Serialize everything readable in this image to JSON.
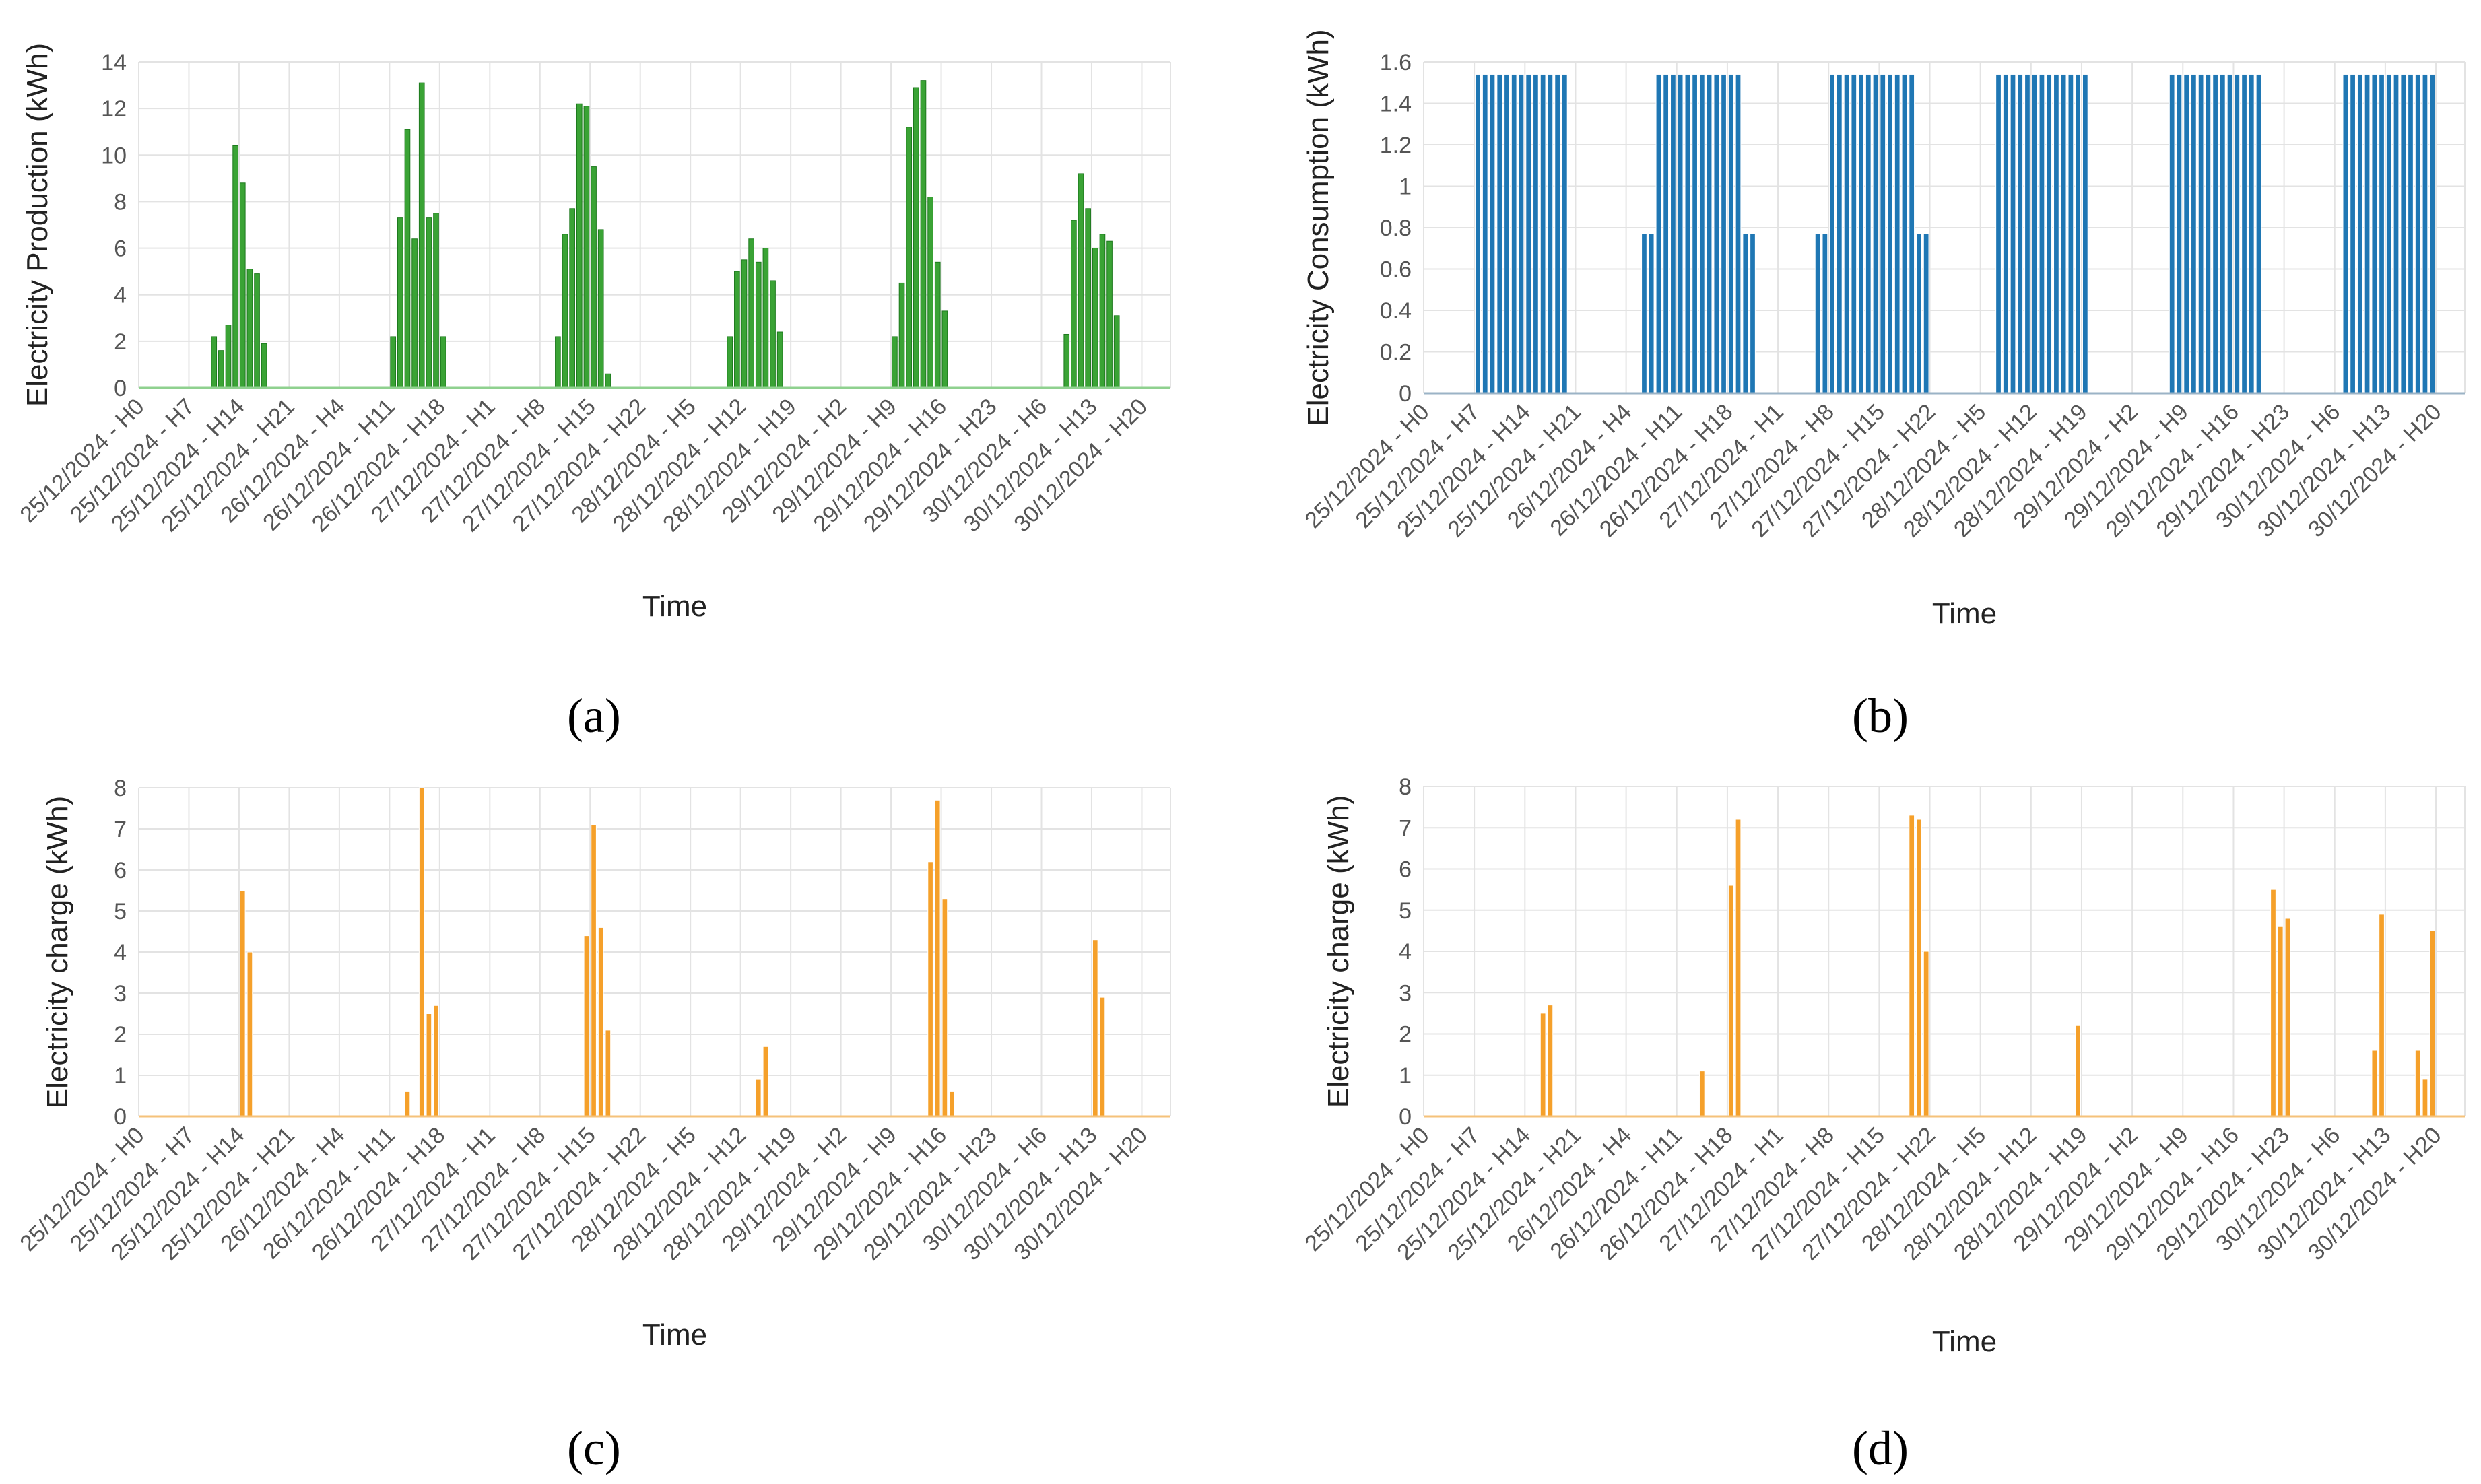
{
  "chart_data": [
    {
      "panel": "a",
      "type": "bar",
      "caption": "(a)",
      "color": "#3aa335",
      "edge_color": "#1e7a1e",
      "baseline_color": "#8fd18f",
      "xlabel": "Time",
      "ylabel": "Electricity Production (kWh)",
      "ylim": [
        0,
        14
      ],
      "yticks": [
        "0",
        "2",
        "4",
        "6",
        "8",
        "10",
        "12",
        "14"
      ],
      "xticks": [
        "25/12/2024 - H0",
        "25/12/2024 - H7",
        "25/12/2024 - H14",
        "25/12/2024 - H21",
        "26/12/2024 - H4",
        "26/12/2024 - H11",
        "26/12/2024 - H18",
        "27/12/2024 - H1",
        "27/12/2024 - H8",
        "27/12/2024 - H15",
        "27/12/2024 - H22",
        "28/12/2024 - H5",
        "28/12/2024 - H12",
        "28/12/2024 - H19",
        "29/12/2024 - H2",
        "29/12/2024 - H9",
        "29/12/2024 - H16",
        "29/12/2024 - H23",
        "30/12/2024 - H6",
        "30/12/2024 - H13",
        "30/12/2024 - H20"
      ],
      "grid": true,
      "bars": [
        {
          "h": 10,
          "v": 2.2
        },
        {
          "h": 11,
          "v": 1.6
        },
        {
          "h": 12,
          "v": 2.7
        },
        {
          "h": 13,
          "v": 10.4
        },
        {
          "h": 14,
          "v": 8.8
        },
        {
          "h": 15,
          "v": 5.1
        },
        {
          "h": 16,
          "v": 4.9
        },
        {
          "h": 17,
          "v": 1.9
        },
        {
          "h": 35,
          "v": 2.2
        },
        {
          "h": 36,
          "v": 7.3
        },
        {
          "h": 37,
          "v": 11.1
        },
        {
          "h": 38,
          "v": 6.4
        },
        {
          "h": 39,
          "v": 13.1
        },
        {
          "h": 40,
          "v": 7.3
        },
        {
          "h": 41,
          "v": 7.5
        },
        {
          "h": 42,
          "v": 2.2
        },
        {
          "h": 58,
          "v": 2.2
        },
        {
          "h": 59,
          "v": 6.6
        },
        {
          "h": 60,
          "v": 7.7
        },
        {
          "h": 61,
          "v": 12.2
        },
        {
          "h": 62,
          "v": 12.1
        },
        {
          "h": 63,
          "v": 9.5
        },
        {
          "h": 64,
          "v": 6.8
        },
        {
          "h": 65,
          "v": 0.6
        },
        {
          "h": 82,
          "v": 2.2
        },
        {
          "h": 83,
          "v": 5.0
        },
        {
          "h": 84,
          "v": 5.5
        },
        {
          "h": 85,
          "v": 6.4
        },
        {
          "h": 86,
          "v": 5.4
        },
        {
          "h": 87,
          "v": 6.0
        },
        {
          "h": 88,
          "v": 4.6
        },
        {
          "h": 89,
          "v": 2.4
        },
        {
          "h": 105,
          "v": 2.2
        },
        {
          "h": 106,
          "v": 4.5
        },
        {
          "h": 107,
          "v": 11.2
        },
        {
          "h": 108,
          "v": 12.9
        },
        {
          "h": 109,
          "v": 13.2
        },
        {
          "h": 110,
          "v": 8.2
        },
        {
          "h": 111,
          "v": 5.4
        },
        {
          "h": 112,
          "v": 3.3
        },
        {
          "h": 129,
          "v": 2.3
        },
        {
          "h": 130,
          "v": 7.2
        },
        {
          "h": 131,
          "v": 9.2
        },
        {
          "h": 132,
          "v": 7.7
        },
        {
          "h": 133,
          "v": 6.0
        },
        {
          "h": 134,
          "v": 6.6
        },
        {
          "h": 135,
          "v": 6.3
        },
        {
          "h": 136,
          "v": 3.1
        }
      ]
    },
    {
      "panel": "b",
      "type": "bar",
      "caption": "(b)",
      "color": "#1f77b4",
      "edge_color": "#ffffff",
      "baseline_color": "#9bb3c6",
      "xlabel": "Time",
      "ylabel": "Electricity Consumption (kWh)",
      "ylim": [
        0,
        1.6
      ],
      "yticks": [
        "0",
        "0.2",
        "0.4",
        "0.6",
        "0.8",
        "1",
        "1.2",
        "1.4",
        "1.6"
      ],
      "xticks": [
        "25/12/2024 - H0",
        "25/12/2024 - H7",
        "25/12/2024 - H14",
        "25/12/2024 - H21",
        "26/12/2024 - H4",
        "26/12/2024 - H11",
        "26/12/2024 - H18",
        "27/12/2024 - H1",
        "27/12/2024 - H8",
        "27/12/2024 - H15",
        "27/12/2024 - H22",
        "28/12/2024 - H5",
        "28/12/2024 - H12",
        "28/12/2024 - H19",
        "29/12/2024 - H2",
        "29/12/2024 - H9",
        "29/12/2024 - H16",
        "29/12/2024 - H23",
        "30/12/2024 - H6",
        "30/12/2024 - H13",
        "30/12/2024 - H20"
      ],
      "grid": true,
      "bars": [
        {
          "h": 7,
          "v": 1.54
        },
        {
          "h": 8,
          "v": 1.54
        },
        {
          "h": 9,
          "v": 1.54
        },
        {
          "h": 10,
          "v": 1.54
        },
        {
          "h": 11,
          "v": 1.54
        },
        {
          "h": 12,
          "v": 1.54
        },
        {
          "h": 13,
          "v": 1.54
        },
        {
          "h": 14,
          "v": 1.54
        },
        {
          "h": 15,
          "v": 1.54
        },
        {
          "h": 16,
          "v": 1.54
        },
        {
          "h": 17,
          "v": 1.54
        },
        {
          "h": 18,
          "v": 1.54
        },
        {
          "h": 19,
          "v": 1.54
        },
        {
          "h": 30,
          "v": 0.77
        },
        {
          "h": 31,
          "v": 0.77
        },
        {
          "h": 32,
          "v": 1.54
        },
        {
          "h": 33,
          "v": 1.54
        },
        {
          "h": 34,
          "v": 1.54
        },
        {
          "h": 35,
          "v": 1.54
        },
        {
          "h": 36,
          "v": 1.54
        },
        {
          "h": 37,
          "v": 1.54
        },
        {
          "h": 38,
          "v": 1.54
        },
        {
          "h": 39,
          "v": 1.54
        },
        {
          "h": 40,
          "v": 1.54
        },
        {
          "h": 41,
          "v": 1.54
        },
        {
          "h": 42,
          "v": 1.54
        },
        {
          "h": 43,
          "v": 1.54
        },
        {
          "h": 44,
          "v": 0.77
        },
        {
          "h": 45,
          "v": 0.77
        },
        {
          "h": 54,
          "v": 0.77
        },
        {
          "h": 55,
          "v": 0.77
        },
        {
          "h": 56,
          "v": 1.54
        },
        {
          "h": 57,
          "v": 1.54
        },
        {
          "h": 58,
          "v": 1.54
        },
        {
          "h": 59,
          "v": 1.54
        },
        {
          "h": 60,
          "v": 1.54
        },
        {
          "h": 61,
          "v": 1.54
        },
        {
          "h": 62,
          "v": 1.54
        },
        {
          "h": 63,
          "v": 1.54
        },
        {
          "h": 64,
          "v": 1.54
        },
        {
          "h": 65,
          "v": 1.54
        },
        {
          "h": 66,
          "v": 1.54
        },
        {
          "h": 67,
          "v": 1.54
        },
        {
          "h": 68,
          "v": 0.77
        },
        {
          "h": 69,
          "v": 0.77
        },
        {
          "h": 79,
          "v": 1.54
        },
        {
          "h": 80,
          "v": 1.54
        },
        {
          "h": 81,
          "v": 1.54
        },
        {
          "h": 82,
          "v": 1.54
        },
        {
          "h": 83,
          "v": 1.54
        },
        {
          "h": 84,
          "v": 1.54
        },
        {
          "h": 85,
          "v": 1.54
        },
        {
          "h": 86,
          "v": 1.54
        },
        {
          "h": 87,
          "v": 1.54
        },
        {
          "h": 88,
          "v": 1.54
        },
        {
          "h": 89,
          "v": 1.54
        },
        {
          "h": 90,
          "v": 1.54
        },
        {
          "h": 91,
          "v": 1.54
        },
        {
          "h": 103,
          "v": 1.54
        },
        {
          "h": 104,
          "v": 1.54
        },
        {
          "h": 105,
          "v": 1.54
        },
        {
          "h": 106,
          "v": 1.54
        },
        {
          "h": 107,
          "v": 1.54
        },
        {
          "h": 108,
          "v": 1.54
        },
        {
          "h": 109,
          "v": 1.54
        },
        {
          "h": 110,
          "v": 1.54
        },
        {
          "h": 111,
          "v": 1.54
        },
        {
          "h": 112,
          "v": 1.54
        },
        {
          "h": 113,
          "v": 1.54
        },
        {
          "h": 114,
          "v": 1.54
        },
        {
          "h": 115,
          "v": 1.54
        },
        {
          "h": 127,
          "v": 1.54
        },
        {
          "h": 128,
          "v": 1.54
        },
        {
          "h": 129,
          "v": 1.54
        },
        {
          "h": 130,
          "v": 1.54
        },
        {
          "h": 131,
          "v": 1.54
        },
        {
          "h": 132,
          "v": 1.54
        },
        {
          "h": 133,
          "v": 1.54
        },
        {
          "h": 134,
          "v": 1.54
        },
        {
          "h": 135,
          "v": 1.54
        },
        {
          "h": 136,
          "v": 1.54
        },
        {
          "h": 137,
          "v": 1.54
        },
        {
          "h": 138,
          "v": 1.54
        },
        {
          "h": 139,
          "v": 1.54
        }
      ]
    },
    {
      "panel": "c",
      "type": "bar",
      "caption": "(c)",
      "color": "#f5a02a",
      "edge_color": "#ffffff",
      "baseline_color": "#f5c27a",
      "xlabel": "Time",
      "ylabel": "Electricity charge (kWh)",
      "ylim": [
        0,
        8
      ],
      "yticks": [
        "0",
        "1",
        "2",
        "3",
        "4",
        "5",
        "6",
        "7",
        "8"
      ],
      "xticks": [
        "25/12/2024 - H0",
        "25/12/2024 - H7",
        "25/12/2024 - H14",
        "25/12/2024 - H21",
        "26/12/2024 - H4",
        "26/12/2024 - H11",
        "26/12/2024 - H18",
        "27/12/2024 - H1",
        "27/12/2024 - H8",
        "27/12/2024 - H15",
        "27/12/2024 - H22",
        "28/12/2024 - H5",
        "28/12/2024 - H12",
        "28/12/2024 - H19",
        "29/12/2024 - H2",
        "29/12/2024 - H9",
        "29/12/2024 - H16",
        "29/12/2024 - H23",
        "30/12/2024 - H6",
        "30/12/2024 - H13",
        "30/12/2024 - H20"
      ],
      "grid": true,
      "bars": [
        {
          "h": 14,
          "v": 5.5
        },
        {
          "h": 15,
          "v": 4.0
        },
        {
          "h": 37,
          "v": 0.6
        },
        {
          "h": 39,
          "v": 8.0
        },
        {
          "h": 40,
          "v": 2.5
        },
        {
          "h": 41,
          "v": 2.7
        },
        {
          "h": 62,
          "v": 4.4
        },
        {
          "h": 63,
          "v": 7.1
        },
        {
          "h": 64,
          "v": 4.6
        },
        {
          "h": 65,
          "v": 2.1
        },
        {
          "h": 86,
          "v": 0.9
        },
        {
          "h": 87,
          "v": 1.7
        },
        {
          "h": 110,
          "v": 6.2
        },
        {
          "h": 111,
          "v": 7.7
        },
        {
          "h": 112,
          "v": 5.3
        },
        {
          "h": 113,
          "v": 0.6
        },
        {
          "h": 133,
          "v": 4.3
        },
        {
          "h": 134,
          "v": 2.9
        }
      ]
    },
    {
      "panel": "d",
      "type": "bar",
      "caption": "(d)",
      "color": "#f5a02a",
      "edge_color": "#ffffff",
      "baseline_color": "#f5c27a",
      "xlabel": "Time",
      "ylabel": "Electricity charge (kWh)",
      "ylim": [
        0,
        8
      ],
      "yticks": [
        "0",
        "1",
        "2",
        "3",
        "4",
        "5",
        "6",
        "7",
        "8"
      ],
      "xticks": [
        "25/12/2024 - H0",
        "25/12/2024 - H7",
        "25/12/2024 - H14",
        "25/12/2024 - H21",
        "26/12/2024 - H4",
        "26/12/2024 - H11",
        "26/12/2024 - H18",
        "27/12/2024 - H1",
        "27/12/2024 - H8",
        "27/12/2024 - H15",
        "27/12/2024 - H22",
        "28/12/2024 - H5",
        "28/12/2024 - H12",
        "28/12/2024 - H19",
        "29/12/2024 - H2",
        "29/12/2024 - H9",
        "29/12/2024 - H16",
        "29/12/2024 - H23",
        "30/12/2024 - H6",
        "30/12/2024 - H13",
        "30/12/2024 - H20"
      ],
      "grid": true,
      "bars": [
        {
          "h": 16,
          "v": 2.5
        },
        {
          "h": 17,
          "v": 2.7
        },
        {
          "h": 38,
          "v": 1.1
        },
        {
          "h": 42,
          "v": 5.6
        },
        {
          "h": 43,
          "v": 7.2
        },
        {
          "h": 67,
          "v": 7.3
        },
        {
          "h": 68,
          "v": 7.2
        },
        {
          "h": 69,
          "v": 4.0
        },
        {
          "h": 90,
          "v": 2.2
        },
        {
          "h": 117,
          "v": 5.5
        },
        {
          "h": 118,
          "v": 4.6
        },
        {
          "h": 119,
          "v": 4.8
        },
        {
          "h": 131,
          "v": 1.6
        },
        {
          "h": 132,
          "v": 4.9
        },
        {
          "h": 137,
          "v": 1.6
        },
        {
          "h": 138,
          "v": 0.9
        },
        {
          "h": 139,
          "v": 4.5
        }
      ]
    }
  ]
}
